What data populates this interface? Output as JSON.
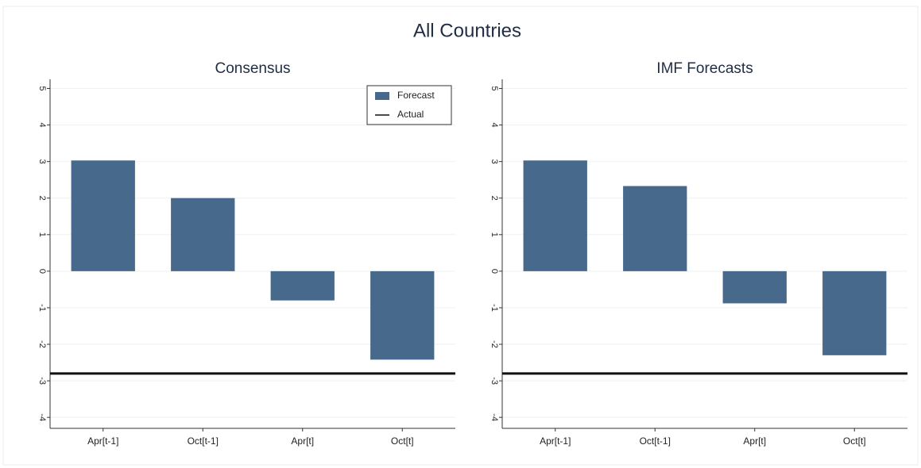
{
  "title": "All Countries",
  "chart_data": [
    {
      "type": "bar",
      "title": "Consensus",
      "categories": [
        "Apr[t-1]",
        "Oct[t-1]",
        "Apr[t]",
        "Oct[t]"
      ],
      "series": [
        {
          "name": "Forecast",
          "color": "#476a8c",
          "values": [
            3.03,
            2.0,
            -0.8,
            -2.42
          ]
        }
      ],
      "reference_lines": [
        {
          "name": "Actual",
          "value": -2.8,
          "color": "#111111"
        }
      ],
      "ylim": [
        -4.3,
        5.25
      ],
      "yticks": [
        -4,
        -3,
        -2,
        -1,
        0,
        1,
        2,
        3,
        4,
        5
      ],
      "grid": true,
      "legend": "top-right"
    },
    {
      "type": "bar",
      "title": "IMF Forecasts",
      "categories": [
        "Apr[t-1]",
        "Oct[t-1]",
        "Apr[t]",
        "Oct[t]"
      ],
      "series": [
        {
          "color": "#476a8c",
          "values": [
            3.03,
            2.33,
            -0.88,
            -2.3
          ]
        }
      ],
      "reference_lines": [
        {
          "value": -2.8,
          "color": "#111111"
        }
      ],
      "ylim": [
        -4.3,
        5.25
      ],
      "yticks": [
        -4,
        -3,
        -2,
        -1,
        0,
        1,
        2,
        3,
        4,
        5
      ],
      "grid": true
    }
  ]
}
